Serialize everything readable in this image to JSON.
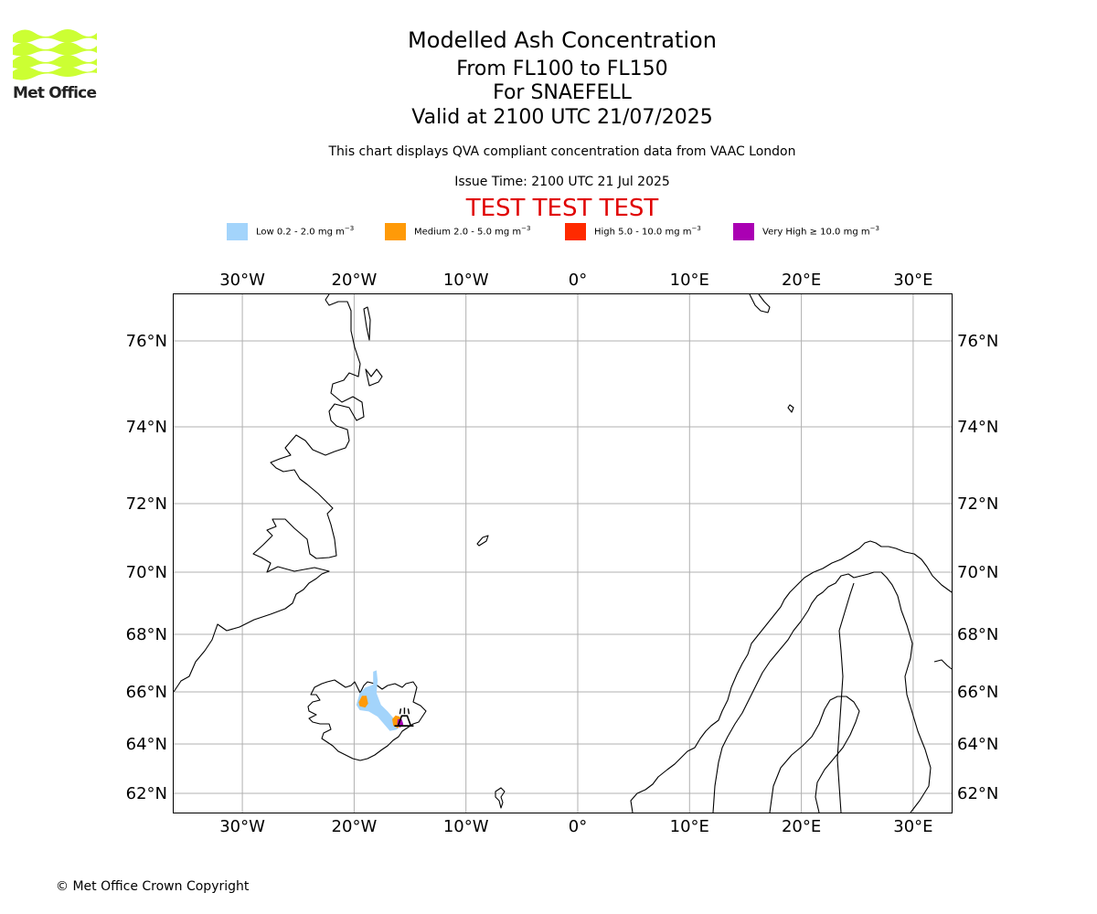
{
  "logo": {
    "text": "Met Office",
    "color": "#ccff33"
  },
  "header": {
    "title": "Modelled Ash Concentration",
    "level": "From FL100 to FL150",
    "volcano": "For SNAEFELL",
    "valid": "Valid at 2100 UTC 21/07/2025",
    "note": "This chart displays QVA compliant concentration data from VAAC London",
    "issue": "Issue Time: 2100 UTC 21 Jul 2025",
    "test_banner": "TEST TEST TEST"
  },
  "legend": [
    {
      "label": "Low 0.2 - 2.0 mg m",
      "color": "#a3d4fb"
    },
    {
      "label": "Medium 2.0 - 5.0 mg m",
      "color": "#ff9a08"
    },
    {
      "label": "High 5.0 - 10.0 mg m",
      "color": "#ff2a00"
    },
    {
      "label": "Very High ≥ 10.0 mg m",
      "color": "#aa00b3"
    }
  ],
  "legend_unit_exponent": "−3",
  "map": {
    "lon_range": [
      -36,
      33.5
    ],
    "lat_range": [
      61.5,
      77.2
    ],
    "lon_ticks": [
      {
        "value": -30,
        "label": "30°W"
      },
      {
        "value": -20,
        "label": "20°W"
      },
      {
        "value": -10,
        "label": "10°W"
      },
      {
        "value": 0,
        "label": "0°"
      },
      {
        "value": 10,
        "label": "10°E"
      },
      {
        "value": 20,
        "label": "20°E"
      },
      {
        "value": 30,
        "label": "30°E"
      }
    ],
    "lat_ticks": [
      {
        "value": 62,
        "label": "62°N"
      },
      {
        "value": 64,
        "label": "64°N"
      },
      {
        "value": 66,
        "label": "66°N"
      },
      {
        "value": 68,
        "label": "68°N"
      },
      {
        "value": 70,
        "label": "70°N"
      },
      {
        "value": 72,
        "label": "72°N"
      },
      {
        "value": 74,
        "label": "74°N"
      },
      {
        "value": 76,
        "label": "76°N"
      }
    ],
    "grid": true,
    "volcano": {
      "name": "SNAEFELL",
      "lon": -15.5,
      "lat": 64.8,
      "icon": "volcano-icon"
    },
    "ash_areas": [
      {
        "level": "Low",
        "color": "#a3d4fb",
        "outline": [
          [
            -19.8,
            65.5
          ],
          [
            -19.5,
            65.95
          ],
          [
            -19.0,
            66.15
          ],
          [
            -18.3,
            66.25
          ],
          [
            -18.3,
            66.7
          ],
          [
            -18.0,
            66.75
          ],
          [
            -17.9,
            66.4
          ],
          [
            -18.0,
            65.95
          ],
          [
            -17.6,
            65.5
          ],
          [
            -17.0,
            65.25
          ],
          [
            -16.5,
            65.0
          ],
          [
            -15.8,
            65.0
          ],
          [
            -15.6,
            64.8
          ],
          [
            -16.2,
            64.55
          ],
          [
            -16.8,
            64.5
          ],
          [
            -17.2,
            64.7
          ],
          [
            -17.9,
            65.05
          ],
          [
            -18.7,
            65.25
          ],
          [
            -19.5,
            65.3
          ]
        ]
      },
      {
        "level": "Medium",
        "color": "#ff9a08",
        "outline": [
          [
            -19.6,
            65.6
          ],
          [
            -19.3,
            65.85
          ],
          [
            -18.9,
            65.85
          ],
          [
            -18.75,
            65.55
          ],
          [
            -19.0,
            65.4
          ],
          [
            -19.5,
            65.45
          ]
        ]
      },
      {
        "level": "Medium",
        "color": "#ff9a08",
        "outline": [
          [
            -16.6,
            64.95
          ],
          [
            -16.3,
            65.1
          ],
          [
            -15.9,
            65.05
          ],
          [
            -15.8,
            64.75
          ],
          [
            -16.1,
            64.6
          ],
          [
            -16.5,
            64.7
          ]
        ]
      },
      {
        "level": "Very High",
        "color": "#aa00b3",
        "outline": [
          [
            -16.1,
            64.95
          ],
          [
            -15.75,
            64.95
          ],
          [
            -15.6,
            64.75
          ],
          [
            -15.9,
            64.62
          ],
          [
            -16.15,
            64.75
          ]
        ]
      }
    ]
  },
  "copyright": "© Met Office Crown Copyright"
}
